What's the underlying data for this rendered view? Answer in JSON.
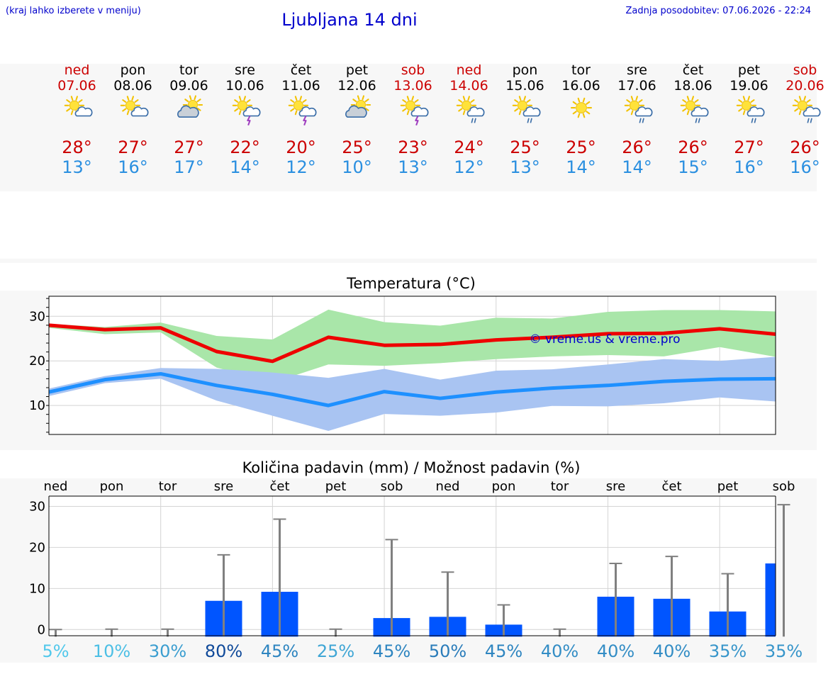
{
  "header": {
    "hint": "(kraj lahko izberete v meniju)",
    "title": "Ljubljana 14 dni",
    "updated": "Zadnja posodobitev: 07.06.2026 - 22:24"
  },
  "days": [
    {
      "name": "ned",
      "date": "07.06",
      "icon": "sun-cloud",
      "max": "28°",
      "min": "13°",
      "weekend": true
    },
    {
      "name": "pon",
      "date": "08.06",
      "icon": "sun-cloud",
      "max": "27°",
      "min": "16°",
      "weekend": false
    },
    {
      "name": "tor",
      "date": "09.06",
      "icon": "cloud-sun",
      "max": "27°",
      "min": "17°",
      "weekend": false
    },
    {
      "name": "sre",
      "date": "10.06",
      "icon": "sun-thunder",
      "max": "22°",
      "min": "14°",
      "weekend": false
    },
    {
      "name": "čet",
      "date": "11.06",
      "icon": "sun-thunder",
      "max": "20°",
      "min": "12°",
      "weekend": false
    },
    {
      "name": "pet",
      "date": "12.06",
      "icon": "cloud-sun",
      "max": "25°",
      "min": "10°",
      "weekend": false
    },
    {
      "name": "sob",
      "date": "13.06",
      "icon": "sun-thunder",
      "max": "23°",
      "min": "13°",
      "weekend": true
    },
    {
      "name": "ned",
      "date": "14.06",
      "icon": "sun-rain",
      "max": "24°",
      "min": "12°",
      "weekend": true
    },
    {
      "name": "pon",
      "date": "15.06",
      "icon": "sun-rain",
      "max": "25°",
      "min": "13°",
      "weekend": false
    },
    {
      "name": "tor",
      "date": "16.06",
      "icon": "sun",
      "max": "25°",
      "min": "14°",
      "weekend": false
    },
    {
      "name": "sre",
      "date": "17.06",
      "icon": "sun-rain",
      "max": "26°",
      "min": "14°",
      "weekend": false
    },
    {
      "name": "čet",
      "date": "18.06",
      "icon": "sun-rain",
      "max": "26°",
      "min": "15°",
      "weekend": false
    },
    {
      "name": "pet",
      "date": "19.06",
      "icon": "sun-rain",
      "max": "27°",
      "min": "16°",
      "weekend": false
    },
    {
      "name": "sob",
      "date": "20.06",
      "icon": "sun-rain",
      "max": "26°",
      "min": "16°",
      "weekend": true
    }
  ],
  "colors": {
    "max_line": "#ee0000",
    "max_band": "#a9e6a9",
    "min_line": "#1e90ff",
    "min_band": "#a9c4f2",
    "precip_bar": "#0055ff",
    "error_bar": "#808080",
    "weekend": "#cc0000",
    "watermark": "#0000cc"
  },
  "chart_data": [
    {
      "type": "line",
      "title": "Temperatura (°C)",
      "watermark": "© vreme.us & vreme.pro",
      "ylim": [
        3.5,
        34.5
      ],
      "yticks": [
        10,
        20,
        30
      ],
      "grid": true,
      "series": [
        {
          "values": [
            28.0,
            27.0,
            27.4,
            22.1,
            19.9,
            25.3,
            23.5,
            23.7,
            24.7,
            25.3,
            26.1,
            26.2,
            27.2,
            26.0
          ],
          "band_upper": [
            28.3,
            27.6,
            28.6,
            25.6,
            24.8,
            31.5,
            28.7,
            27.9,
            29.7,
            29.5,
            31.0,
            31.4,
            31.4,
            31.1
          ],
          "band_lower": [
            27.4,
            26.0,
            26.4,
            18.5,
            15.1,
            19.2,
            18.9,
            19.5,
            20.4,
            21.0,
            21.3,
            21.0,
            23.1,
            20.9
          ]
        },
        {
          "values": [
            13.0,
            15.8,
            17.1,
            14.5,
            12.5,
            10.0,
            13.1,
            11.6,
            13.0,
            13.9,
            14.5,
            15.4,
            15.9,
            16.0
          ],
          "band_upper": [
            13.8,
            16.6,
            18.4,
            18.2,
            17.4,
            16.2,
            18.2,
            15.8,
            17.8,
            18.1,
            19.2,
            20.4,
            20.0,
            20.9
          ],
          "band_lower": [
            12.1,
            15.0,
            16.0,
            11.1,
            7.7,
            4.3,
            8.1,
            7.7,
            8.4,
            9.9,
            9.8,
            10.5,
            11.8,
            10.9
          ]
        }
      ]
    },
    {
      "type": "bar",
      "title": "Količina padavin (mm) / Možnost padavin (%)",
      "categories": [
        "ned",
        "pon",
        "tor",
        "sre",
        "čet",
        "pet",
        "sob",
        "ned",
        "pon",
        "tor",
        "sre",
        "čet",
        "pet",
        "sob"
      ],
      "ylim": [
        -1.5,
        32.5
      ],
      "yticks": [
        0,
        10,
        20,
        30
      ],
      "grid": true,
      "values": [
        0,
        0,
        0,
        7.0,
        9.2,
        0,
        2.8,
        3.1,
        1.2,
        0,
        8.0,
        7.5,
        4.4,
        16.1
      ],
      "error_upper": [
        0,
        0.1,
        0.1,
        18.2,
        26.9,
        0.1,
        21.9,
        14.0,
        6.0,
        0.1,
        16.1,
        17.8,
        13.6,
        30.4
      ],
      "chance": [
        "5%",
        "10%",
        "30%",
        "80%",
        "45%",
        "25%",
        "45%",
        "50%",
        "45%",
        "40%",
        "40%",
        "40%",
        "35%",
        "35%"
      ]
    }
  ]
}
